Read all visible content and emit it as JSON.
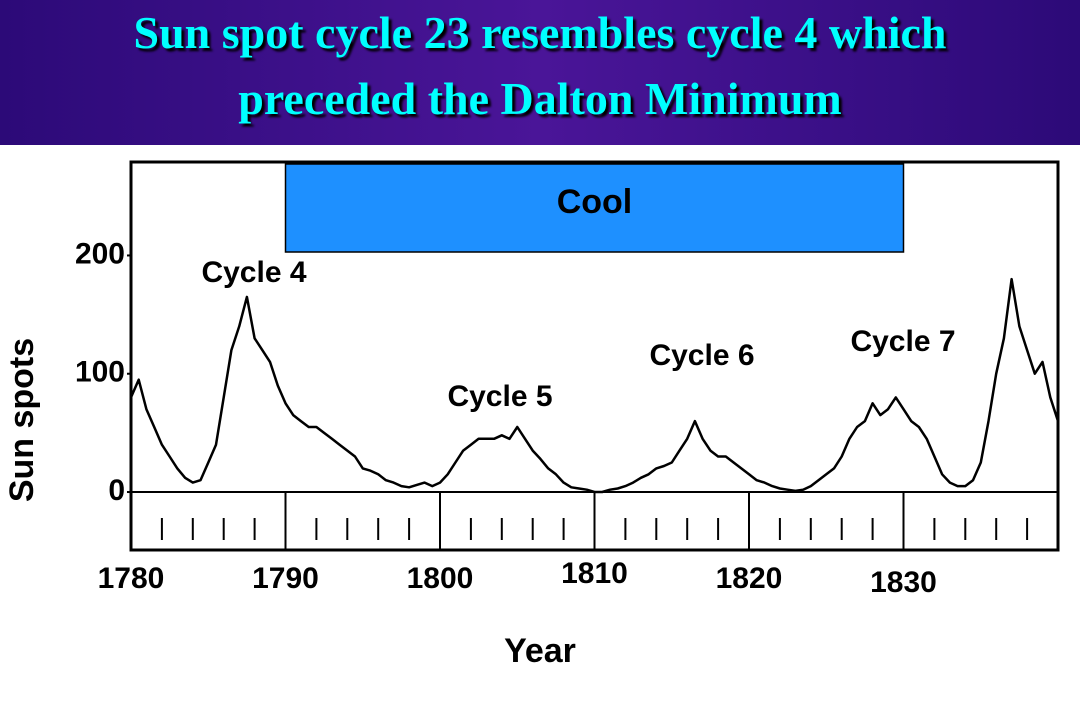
{
  "chart_data": {
    "type": "line",
    "title": [
      "Sun spot cycle 23 resembles cycle 4 which",
      "preceded the Dalton Minimum"
    ],
    "xlabel": "Year",
    "ylabel": "Sun spots",
    "x": [
      1780,
      1780.5,
      1781,
      1781.5,
      1782,
      1782.5,
      1783,
      1783.5,
      1784,
      1784.5,
      1785,
      1785.5,
      1786,
      1786.5,
      1787,
      1787.5,
      1788,
      1788.5,
      1789,
      1789.5,
      1790,
      1790.5,
      1791,
      1791.5,
      1792,
      1792.5,
      1793,
      1793.5,
      1794,
      1794.5,
      1795,
      1795.5,
      1796,
      1796.5,
      1797,
      1797.5,
      1798,
      1798.5,
      1799,
      1799.5,
      1800,
      1800.5,
      1801,
      1801.5,
      1802,
      1802.5,
      1803,
      1803.5,
      1804,
      1804.5,
      1805,
      1805.5,
      1806,
      1806.5,
      1807,
      1807.5,
      1808,
      1808.5,
      1809,
      1809.5,
      1810,
      1810.5,
      1811,
      1811.5,
      1812,
      1812.5,
      1813,
      1813.5,
      1814,
      1814.5,
      1815,
      1815.5,
      1816,
      1816.5,
      1817,
      1817.5,
      1818,
      1818.5,
      1819,
      1819.5,
      1820,
      1820.5,
      1821,
      1821.5,
      1822,
      1822.5,
      1823,
      1823.5,
      1824,
      1824.5,
      1825,
      1825.5,
      1826,
      1826.5,
      1827,
      1827.5,
      1828,
      1828.5,
      1829,
      1829.5,
      1830,
      1830.5,
      1831,
      1831.5,
      1832,
      1832.5,
      1833,
      1833.5,
      1834,
      1834.5,
      1835,
      1835.5,
      1836,
      1836.5,
      1837,
      1837.5,
      1838,
      1838.5,
      1839,
      1839.5,
      1840
    ],
    "series": [
      {
        "color": "#000000",
        "values": [
          80,
          95,
          70,
          55,
          40,
          30,
          20,
          12,
          8,
          10,
          25,
          40,
          80,
          120,
          140,
          165,
          130,
          120,
          110,
          90,
          75,
          65,
          60,
          55,
          55,
          50,
          45,
          40,
          35,
          30,
          20,
          18,
          15,
          10,
          8,
          5,
          4,
          6,
          8,
          5,
          8,
          15,
          25,
          35,
          40,
          45,
          45,
          45,
          48,
          45,
          55,
          45,
          35,
          28,
          20,
          15,
          8,
          4,
          3,
          2,
          0,
          0,
          2,
          3,
          5,
          8,
          12,
          15,
          20,
          22,
          25,
          35,
          45,
          60,
          45,
          35,
          30,
          30,
          25,
          20,
          15,
          10,
          8,
          5,
          3,
          2,
          1,
          2,
          5,
          10,
          15,
          20,
          30,
          45,
          55,
          60,
          75,
          65,
          70,
          80,
          70,
          60,
          55,
          45,
          30,
          15,
          8,
          5,
          5,
          10,
          25,
          60,
          100,
          130,
          180,
          140,
          120,
          100,
          110,
          80,
          60
        ]
      }
    ],
    "xlim": [
      1780,
      1840
    ],
    "ylim": [
      -49,
      279
    ],
    "xticks": [
      1780,
      1790,
      1800,
      1810,
      1820,
      1830
    ],
    "xminorticks": [
      1782,
      1784,
      1786,
      1788,
      1792,
      1794,
      1796,
      1798,
      1802,
      1804,
      1806,
      1808,
      1812,
      1814,
      1816,
      1818,
      1822,
      1824,
      1826,
      1828,
      1832,
      1834,
      1836,
      1838
    ],
    "yticks": [
      0,
      100,
      200
    ],
    "cool_band": {
      "label": "Cool",
      "x": [
        1790,
        1830
      ],
      "color": "#1e90ff"
    },
    "annotations": [
      "Cycle 4",
      "Cycle 5",
      "Cycle 6",
      "Cycle 7"
    ]
  }
}
